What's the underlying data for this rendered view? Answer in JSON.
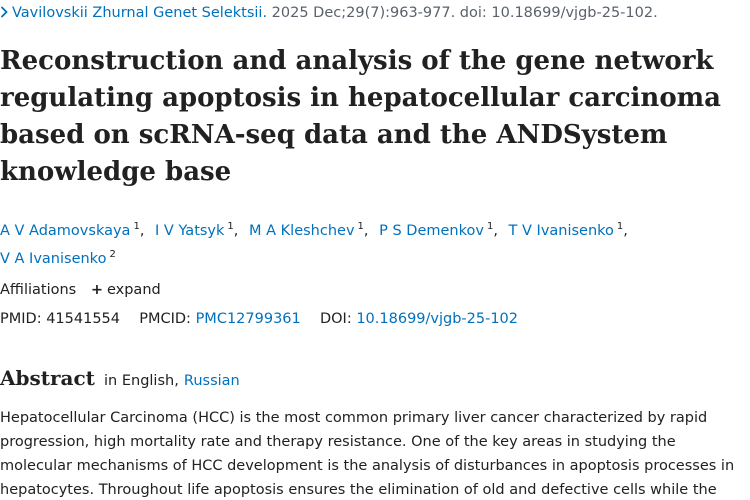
{
  "citation": {
    "journal": "Vavilovskii Zhurnal Genet Selektsii.",
    "details": "2025 Dec;29(7):963-977. doi: 10.18699/vjgb-25-102."
  },
  "title_lines": [
    "Reconstruction and analysis of the gene network",
    "regulating apoptosis in hepatocellular carcinoma",
    "based on scRNA-seq data and the ANDSystem",
    "knowledge base"
  ],
  "authors": [
    {
      "name": "A V Adamovskaya",
      "aff": "1"
    },
    {
      "name": "I V Yatsyk",
      "aff": "1"
    },
    {
      "name": "M A Kleshchev",
      "aff": "1"
    },
    {
      "name": "P S Demenkov",
      "aff": "1"
    },
    {
      "name": "T V Ivanisenko",
      "aff": "1"
    },
    {
      "name": "V A Ivanisenko",
      "aff": "2"
    }
  ],
  "affiliations": {
    "label": "Affiliations",
    "expand_label": "expand"
  },
  "ids": {
    "pmid_label": "PMID:",
    "pmid": "41541554",
    "pmcid_label": "PMCID:",
    "pmcid": "PMC12799361",
    "doi_label": "DOI:",
    "doi": "10.18699/vjgb-25-102"
  },
  "abstract": {
    "heading": "Abstract",
    "lang_prefix": "in English,",
    "lang_link": "Russian",
    "lines": [
      "Hepatocellular Carcinoma (HCC) is the most common primary liver cancer characterized by rapid",
      "progression, high mortality rate and therapy resistance. One of the key areas in studying the",
      "molecular mechanisms of HCC development is the analysis of disturbances in apoptosis processes in",
      "hepatocytes. Throughout life apoptosis ensures the elimination of old and defective cells while the"
    ]
  },
  "colors": {
    "link": "#0071bc",
    "text": "#212121"
  }
}
